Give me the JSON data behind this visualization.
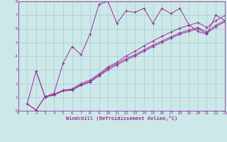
{
  "background_color": "#cce8e8",
  "grid_color": "#aacccc",
  "line_color": "#993399",
  "marker_color": "#993399",
  "xlabel": "Windchill (Refroidissement éolien,°C)",
  "xlabel_color": "#993399",
  "tick_color": "#993399",
  "xlim": [
    0,
    23
  ],
  "ylim": [
    0,
    8
  ],
  "xticks": [
    0,
    1,
    2,
    3,
    4,
    5,
    6,
    7,
    8,
    9,
    10,
    11,
    12,
    13,
    14,
    15,
    16,
    17,
    18,
    19,
    20,
    21,
    22,
    23
  ],
  "yticks": [
    0,
    1,
    2,
    3,
    4,
    5,
    6,
    7,
    8
  ],
  "line1_x": [
    1,
    2,
    3,
    4,
    5,
    6,
    7,
    8,
    9,
    10,
    11,
    12,
    13,
    14,
    15,
    16,
    17,
    18,
    19,
    20,
    21,
    22,
    23
  ],
  "line1_y": [
    0.5,
    2.9,
    1.0,
    1.3,
    3.5,
    4.7,
    4.1,
    5.6,
    7.8,
    8.0,
    6.4,
    7.3,
    7.2,
    7.5,
    6.4,
    7.5,
    7.1,
    7.5,
    6.3,
    5.8,
    5.6,
    7.0,
    6.6
  ],
  "line2_x": [
    1,
    2,
    3,
    4,
    5,
    6,
    7,
    8,
    9,
    10,
    11,
    12,
    13,
    14,
    15,
    16,
    17,
    18,
    19,
    20,
    21,
    22,
    23
  ],
  "line2_y": [
    0.5,
    0.05,
    1.0,
    1.15,
    1.45,
    1.5,
    1.85,
    2.1,
    2.55,
    3.0,
    3.35,
    3.7,
    4.0,
    4.35,
    4.7,
    5.0,
    5.3,
    5.6,
    5.8,
    6.0,
    5.65,
    6.15,
    6.5
  ],
  "line3_x": [
    1,
    2,
    3,
    4,
    5,
    6,
    7,
    8,
    9,
    10,
    11,
    12,
    13,
    14,
    15,
    16,
    17,
    18,
    19,
    20,
    21,
    22,
    23
  ],
  "line3_y": [
    0.5,
    0.05,
    1.05,
    1.2,
    1.5,
    1.6,
    2.0,
    2.25,
    2.7,
    3.2,
    3.55,
    4.0,
    4.35,
    4.75,
    5.1,
    5.45,
    5.75,
    6.05,
    6.25,
    6.45,
    6.1,
    6.6,
    6.95
  ],
  "line4_x": [
    2,
    3,
    4,
    5,
    6,
    7,
    8,
    9,
    10,
    11,
    12,
    13,
    14,
    15,
    16,
    17,
    18,
    19,
    20,
    21,
    22,
    23
  ],
  "line4_y": [
    2.9,
    1.0,
    1.2,
    1.5,
    1.55,
    1.9,
    2.15,
    2.6,
    3.1,
    3.45,
    3.8,
    4.1,
    4.45,
    4.8,
    5.1,
    5.4,
    5.7,
    5.9,
    6.1,
    5.75,
    6.25,
    6.6
  ]
}
